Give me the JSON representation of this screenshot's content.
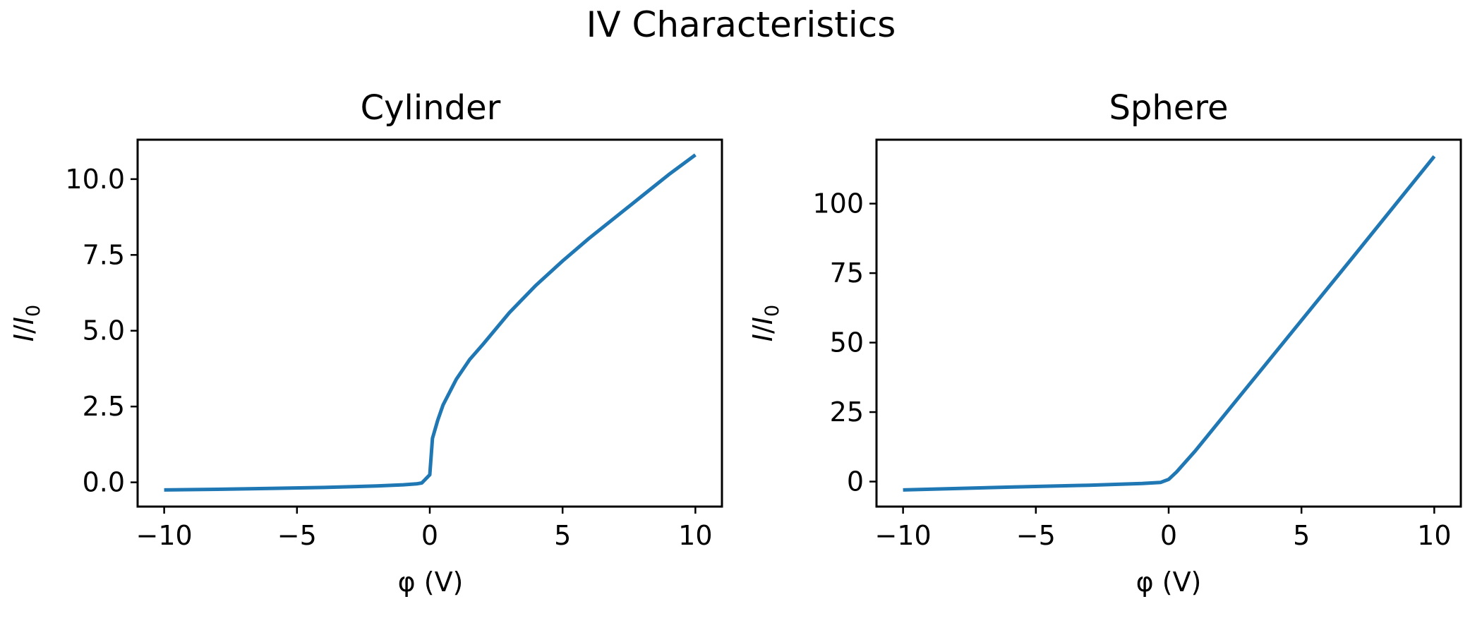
{
  "figure": {
    "title": "IV Characteristics"
  },
  "colors": {
    "series": "#1f77b4"
  },
  "chart_data": [
    {
      "type": "line",
      "title": "Cylinder",
      "xlabel": "φ (V)",
      "ylabel_main": "I",
      "ylabel_sep": "/",
      "ylabel_italic": "I",
      "ylabel_sub": "0",
      "xlim": [
        -11,
        11
      ],
      "ylim": [
        -0.8,
        11.3
      ],
      "xticks": [
        -10,
        -5,
        0,
        5,
        10
      ],
      "xtick_labels": [
        "−10",
        "−5",
        "0",
        "5",
        "10"
      ],
      "yticks": [
        0.0,
        2.5,
        5.0,
        7.5,
        10.0
      ],
      "ytick_labels": [
        "0.0",
        "2.5",
        "5.0",
        "7.5",
        "10.0"
      ],
      "grid": false,
      "series": [
        {
          "x": [
            -10,
            -8,
            -6,
            -4,
            -2,
            -1,
            -0.5,
            -0.3,
            0,
            0.1,
            0.3,
            0.5,
            1,
            1.5,
            2,
            3,
            4,
            5,
            6,
            7,
            8,
            9,
            10
          ],
          "y": [
            -0.25,
            -0.23,
            -0.2,
            -0.17,
            -0.12,
            -0.08,
            -0.05,
            -0.02,
            0.25,
            1.45,
            2.05,
            2.55,
            3.4,
            4.05,
            4.55,
            5.6,
            6.5,
            7.3,
            8.05,
            8.75,
            9.45,
            10.15,
            10.8
          ]
        }
      ]
    },
    {
      "type": "line",
      "title": "Sphere",
      "xlabel": "φ (V)",
      "ylabel_main": "I",
      "ylabel_sep": "/",
      "ylabel_italic": "I",
      "ylabel_sub": "0",
      "xlim": [
        -11,
        11
      ],
      "ylim": [
        -9,
        123
      ],
      "xticks": [
        -10,
        -5,
        0,
        5,
        10
      ],
      "xtick_labels": [
        "−10",
        "−5",
        "0",
        "5",
        "10"
      ],
      "yticks": [
        0,
        25,
        50,
        75,
        100
      ],
      "ytick_labels": [
        "0",
        "25",
        "50",
        "75",
        "100"
      ],
      "grid": false,
      "series": [
        {
          "x": [
            -10,
            -6,
            -3,
            -1,
            -0.3,
            0,
            0.3,
            1,
            3,
            5,
            7,
            10
          ],
          "y": [
            -3,
            -2,
            -1.3,
            -0.7,
            -0.3,
            0.8,
            3.5,
            11,
            34.5,
            58,
            81.5,
            117
          ]
        }
      ]
    }
  ]
}
